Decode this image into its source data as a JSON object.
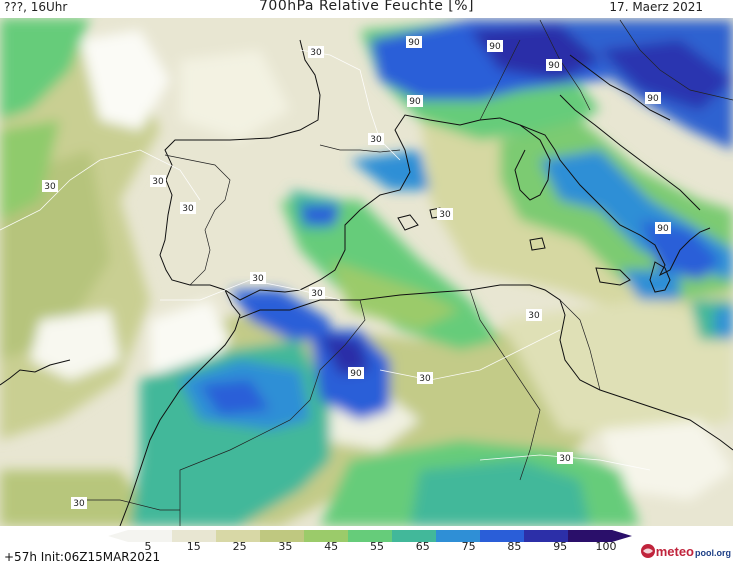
{
  "header": {
    "left": "???, 16Uhr",
    "title": "700hPa Relative Feuchte [%]",
    "date": "17. Maerz 2021"
  },
  "footer": {
    "run_info": "+57h Init:06Z15MAR2021",
    "logo_name": "meteo",
    "logo_suffix": "pool.org"
  },
  "colorbar": {
    "labels": [
      "5",
      "15",
      "25",
      "35",
      "45",
      "55",
      "65",
      "75",
      "85",
      "95",
      "100"
    ],
    "colors": [
      "#f4f4f0",
      "#e8e6d2",
      "#d8d8a6",
      "#bfc880",
      "#9bcb6a",
      "#66cc7a",
      "#42b89a",
      "#2f8fd6",
      "#2a5ed8",
      "#2c2fa8",
      "#2a0f6a"
    ]
  },
  "map": {
    "contour_labels": [
      {
        "text": "30"
      },
      {
        "text": "30"
      },
      {
        "text": "30"
      },
      {
        "text": "30"
      },
      {
        "text": "30"
      },
      {
        "text": "30"
      },
      {
        "text": "30"
      },
      {
        "text": "30"
      },
      {
        "text": "30"
      },
      {
        "text": "30"
      },
      {
        "text": "30"
      },
      {
        "text": "30"
      },
      {
        "text": "90"
      },
      {
        "text": "90"
      },
      {
        "text": "90"
      },
      {
        "text": "90"
      },
      {
        "text": "90"
      },
      {
        "text": "90"
      },
      {
        "text": "90"
      }
    ]
  }
}
